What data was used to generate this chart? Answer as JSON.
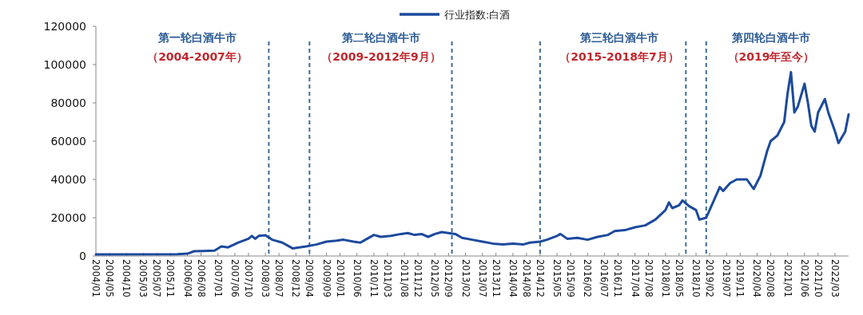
{
  "chart_data": {
    "type": "line",
    "legend": "top",
    "grid": false,
    "marker": "none",
    "line_style": "solid",
    "xlim": [
      "2004-01",
      "2022-07"
    ],
    "ylim": [
      0,
      120000
    ],
    "yticks": [
      0,
      20000,
      40000,
      60000,
      80000,
      100000,
      120000
    ],
    "xticks": [
      {
        "value": "2004-01",
        "label": "2004/01"
      },
      {
        "value": "2004-05",
        "label": "2004/05"
      },
      {
        "value": "2004-10",
        "label": "2004/10"
      },
      {
        "value": "2005-03",
        "label": "2005/03"
      },
      {
        "value": "2005-07",
        "label": "2005/07"
      },
      {
        "value": "2005-11",
        "label": "2005/11"
      },
      {
        "value": "2006-04",
        "label": "2006/04"
      },
      {
        "value": "2006-08",
        "label": "2006/08"
      },
      {
        "value": "2007-01",
        "label": "2007/01"
      },
      {
        "value": "2007-06",
        "label": "2007/06"
      },
      {
        "value": "2007-10",
        "label": "2007/10"
      },
      {
        "value": "2008-03",
        "label": "2008/03"
      },
      {
        "value": "2008-07",
        "label": "2008/07"
      },
      {
        "value": "2008-12",
        "label": "2008/12"
      },
      {
        "value": "2009-04",
        "label": "2009/04"
      },
      {
        "value": "2009-09",
        "label": "2009/09"
      },
      {
        "value": "2010-01",
        "label": "2010/01"
      },
      {
        "value": "2010-06",
        "label": "2010/06"
      },
      {
        "value": "2010-11",
        "label": "2010/11"
      },
      {
        "value": "2011-03",
        "label": "2011/03"
      },
      {
        "value": "2011-08",
        "label": "2011/08"
      },
      {
        "value": "2011-12",
        "label": "2011/12"
      },
      {
        "value": "2012-05",
        "label": "2012/05"
      },
      {
        "value": "2012-09",
        "label": "2012/09"
      },
      {
        "value": "2013-02",
        "label": "2013/02"
      },
      {
        "value": "2013-07",
        "label": "2013/07"
      },
      {
        "value": "2013-11",
        "label": "2013/11"
      },
      {
        "value": "2014-04",
        "label": "2014/04"
      },
      {
        "value": "2014-08",
        "label": "2014/08"
      },
      {
        "value": "2014-12",
        "label": "2014/12"
      },
      {
        "value": "2015-05",
        "label": "2015/05"
      },
      {
        "value": "2015-09",
        "label": "2015/09"
      },
      {
        "value": "2016-02",
        "label": "2016/02"
      },
      {
        "value": "2016-07",
        "label": "2016/07"
      },
      {
        "value": "2016-11",
        "label": "2016/11"
      },
      {
        "value": "2017-04",
        "label": "2017/04"
      },
      {
        "value": "2017-08",
        "label": "2017/08"
      },
      {
        "value": "2018-01",
        "label": "2018/01"
      },
      {
        "value": "2018-05",
        "label": "2018/05"
      },
      {
        "value": "2018-10",
        "label": "2018/10"
      },
      {
        "value": "2019-02",
        "label": "2019/02"
      },
      {
        "value": "2019-07",
        "label": "2019/07"
      },
      {
        "value": "2019-11",
        "label": "2019/11"
      },
      {
        "value": "2020-04",
        "label": "2020/04"
      },
      {
        "value": "2020-08",
        "label": "2020/08"
      },
      {
        "value": "2021-01",
        "label": "2021/01"
      },
      {
        "value": "2021-06",
        "label": "2021/06"
      },
      {
        "value": "2021-10",
        "label": "2021/10"
      },
      {
        "value": "2022-03",
        "label": "2022/03"
      }
    ],
    "annotations": [
      "第一轮白酒牛市",
      "（2004-2007年）",
      "第二轮白酒牛市",
      "（2009-2012年9月）",
      "第三轮白酒牛市",
      "（2015-2018年7月）",
      "第四轮白酒牛市",
      "（2019年至今）"
    ],
    "ref_lines": [
      {
        "axis": "x",
        "value": "2008-04",
        "color": "#3d6b99",
        "line_style": "dashed"
      },
      {
        "axis": "x",
        "value": "2009-04",
        "color": "#3d6b99",
        "line_style": "dashed"
      },
      {
        "axis": "x",
        "value": "2012-10",
        "color": "#3d6b99",
        "line_style": "dashed"
      },
      {
        "axis": "x",
        "value": "2014-12",
        "color": "#3d6b99",
        "line_style": "dashed"
      },
      {
        "axis": "x",
        "value": "2018-07",
        "color": "#3d6b99",
        "line_style": "dashed"
      },
      {
        "axis": "x",
        "value": "2019-01",
        "color": "#3d6b99",
        "line_style": "dashed"
      }
    ],
    "series": [
      {
        "name": "行业指数:白酒",
        "color": "#1c4a9c",
        "x": [
          "2004-01",
          "2006-01",
          "2006-04",
          "2006-06",
          "2006-12",
          "2007-02",
          "2007-04",
          "2007-07",
          "2007-10",
          "2007-11",
          "2007-12",
          "2008-01",
          "2008-03",
          "2008-05",
          "2008-08",
          "2008-11",
          "2009-01",
          "2009-03",
          "2009-06",
          "2009-09",
          "2009-12",
          "2010-02",
          "2010-05",
          "2010-07",
          "2010-09",
          "2010-11",
          "2011-01",
          "2011-04",
          "2011-07",
          "2011-09",
          "2011-11",
          "2012-01",
          "2012-03",
          "2012-05",
          "2012-07",
          "2012-09",
          "2012-11",
          "2013-01",
          "2013-04",
          "2013-07",
          "2013-10",
          "2014-01",
          "2014-04",
          "2014-07",
          "2014-09",
          "2014-12",
          "2015-02",
          "2015-05",
          "2015-06",
          "2015-08",
          "2015-11",
          "2016-02",
          "2016-05",
          "2016-08",
          "2016-10",
          "2017-01",
          "2017-04",
          "2017-07",
          "2017-10",
          "2018-01",
          "2018-02",
          "2018-03",
          "2018-05",
          "2018-06",
          "2018-08",
          "2018-10",
          "2018-11",
          "2019-01",
          "2019-03",
          "2019-05",
          "2019-06",
          "2019-08",
          "2019-10",
          "2020-01",
          "2020-03",
          "2020-05",
          "2020-07",
          "2020-08",
          "2020-10",
          "2020-12",
          "2021-01",
          "2021-02",
          "2021-03",
          "2021-04",
          "2021-06",
          "2021-07",
          "2021-08",
          "2021-09",
          "2021-10",
          "2021-12",
          "2022-01",
          "2022-03",
          "2022-04",
          "2022-05",
          "2022-06",
          "2022-07"
        ],
        "values": [
          800,
          900,
          1200,
          2500,
          2800,
          5000,
          4500,
          7000,
          9000,
          10500,
          9000,
          10500,
          10800,
          8500,
          7000,
          4000,
          4500,
          5000,
          6000,
          7500,
          8000,
          8500,
          7500,
          7000,
          9000,
          11000,
          10000,
          10500,
          11500,
          12000,
          11000,
          11500,
          10000,
          11500,
          12500,
          12000,
          11500,
          9500,
          8500,
          7500,
          6500,
          6000,
          6500,
          6000,
          7000,
          7500,
          8500,
          10500,
          11500,
          9000,
          9500,
          8500,
          10000,
          11000,
          13000,
          13500,
          15000,
          16000,
          19000,
          24000,
          28000,
          25000,
          26500,
          29000,
          26000,
          24000,
          19000,
          20000,
          28000,
          36000,
          34000,
          38000,
          40000,
          40000,
          35000,
          42000,
          55000,
          60000,
          63000,
          70000,
          85000,
          96000,
          75000,
          78000,
          90000,
          80000,
          68000,
          65000,
          75000,
          82000,
          75000,
          65000,
          59000,
          62000,
          65000,
          74000
        ]
      }
    ]
  }
}
